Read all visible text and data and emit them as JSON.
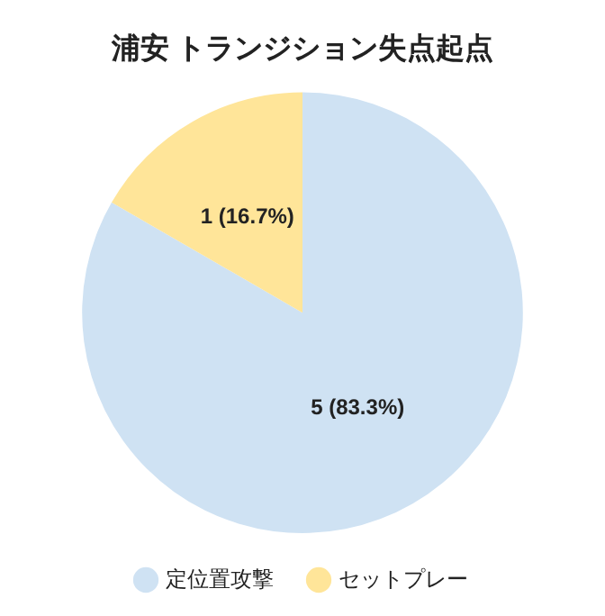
{
  "chart_data": {
    "type": "pie",
    "title": "浦安 トランジション失点起点",
    "categories": [
      "定位置攻撃",
      "セットプレー"
    ],
    "values": [
      5,
      1
    ],
    "colors": [
      "#cfe2f3",
      "#ffe599"
    ],
    "value_labels": [
      "5 (83.3%)",
      "1 (16.7%)"
    ],
    "legend": "bottom"
  }
}
